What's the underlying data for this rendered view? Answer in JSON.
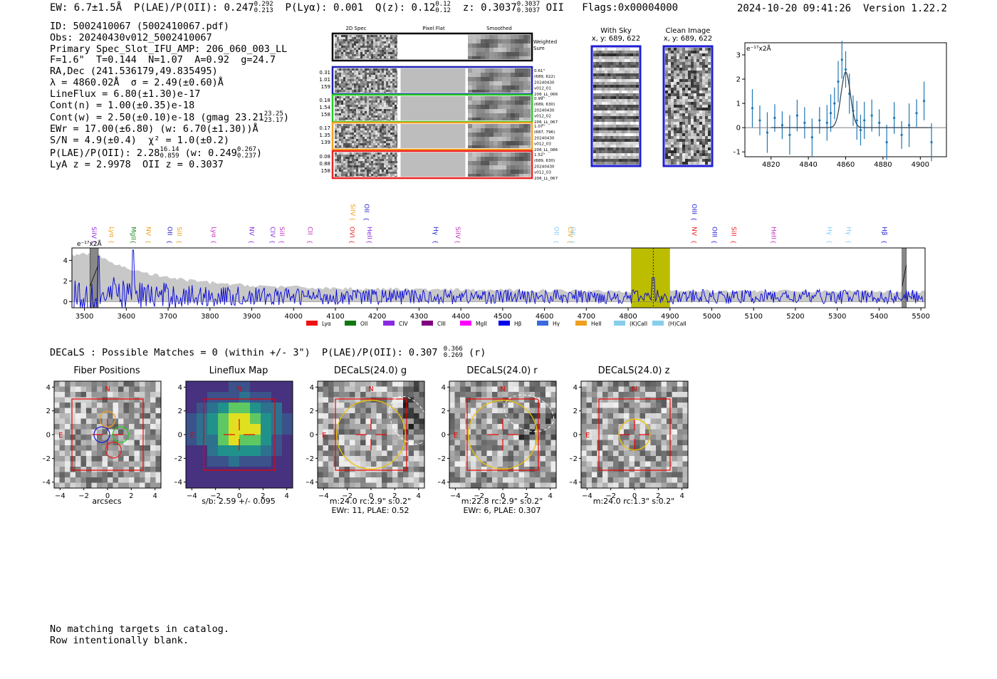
{
  "header": {
    "ew": "EW: 6.7±1.5Å",
    "plae": "P(LAE)/P(OII): 0.247",
    "plae_hi": "0.292",
    "plae_lo": "0.213",
    "plya": "P(Lyα): 0.001",
    "qz": "Q(z): 0.12",
    "qz_hi": "0.12",
    "qz_lo": "0.12",
    "z": "z: 0.3037",
    "z_hi": "0.3037",
    "z_lo": "0.3037",
    "z_line": "OII",
    "flags": "Flags:0x00004000",
    "timestamp": "2024-10-20 09:41:26",
    "version": "Version 1.22.2"
  },
  "info": {
    "l1": "ID: 5002410067 (5002410067.pdf)",
    "l2": "Obs: 20240430v012_5002410067",
    "l3": "Primary Spec_Slot_IFU_AMP: 206_060_003_LL",
    "l4": "F=1.6\"  T=0.144  N=1.07  A=0.92  g=24.7",
    "l5": "RA,Dec (241.536179,49.835495)",
    "l6": "λ = 4860.02Å  σ = 2.49(±0.60)Å",
    "l7": "LineFlux = 6.80(±1.30)e-17",
    "l8": "Cont(n) = 1.00(±0.35)e-18",
    "l9": "Cont(w) = 2.50(±0.10)e-18 (gmag 23.21",
    "l9_hi": "23.25",
    "l9_lo": "23.17",
    "l10": "EWr = 17.00(±6.80) (w: 6.70(±1.30))Å",
    "l11": "S/N = 4.9(±0.4)  χ² = 1.0(±0.2)",
    "l12a": "P(LAE)/P(OII): 2.28",
    "l12_hi": "16.14",
    "l12_lo": "0.859",
    "l12b": "(w: 0.249",
    "l12b_hi": "0.267",
    "l12b_lo": "0.237",
    "l13": "LyA z = 2.9978  OII z = 0.3037"
  },
  "cutouts": {
    "col_titles": [
      "2D Spec",
      "Pixel Flat",
      "Smoothed"
    ],
    "weighted_sum": [
      "Weighted",
      "Sum"
    ],
    "rows": [
      {
        "left": [
          "0.31",
          "1.01",
          "159"
        ],
        "right": [
          "0.61\"",
          "(689, 622)",
          "20240430",
          "v012_01",
          "206_LL_066"
        ],
        "color": "#1f1fb4"
      },
      {
        "left": [
          "0.18",
          "1.54",
          "158"
        ],
        "right": [
          "0.99\"",
          "(689, 630)",
          "20240430",
          "v012_02",
          "206_LL_067"
        ],
        "color": "#22cc22"
      },
      {
        "left": [
          "0.17",
          "1.35",
          "139"
        ],
        "right": [
          "1.07\"",
          "(687, 796)",
          "20240430",
          "v012_03",
          "206_LL_086"
        ],
        "color": "#f0a020"
      },
      {
        "left": [
          "0.08",
          "0.88",
          "158"
        ],
        "right": [
          "1.52\"",
          "(689, 630)",
          "20240430",
          "v012_03",
          "206_LL_067"
        ],
        "color": "#ee2222"
      }
    ],
    "with_sky_title": "With Sky",
    "with_sky_xy": "x, y: 689, 622",
    "clean_title": "Clean Image",
    "clean_xy": "x, y: 689, 622"
  },
  "zoom_chart": {
    "ylabel": "e⁻¹⁷x2Å"
  },
  "spectrum": {
    "ylabel": "e⁻¹⁷x2Å",
    "line_markers": [
      {
        "label": "SiIV",
        "x": 3523,
        "color": "#8a2be2",
        "row": 1
      },
      {
        "label": "Lyα",
        "x": 3565,
        "color": "#f0a020",
        "row": 1
      },
      {
        "label": "MgII",
        "x": 3617,
        "color": "#228b22",
        "row": 1
      },
      {
        "label": "NV",
        "x": 3653,
        "color": "#f0a020",
        "row": 1
      },
      {
        "label": "OII",
        "x": 3704,
        "color": "#1f1fd4",
        "row": 1
      },
      {
        "label": "SiII",
        "x": 3727,
        "color": "#f0a020",
        "row": 1
      },
      {
        "label": "Lyα",
        "x": 3810,
        "color": "#c030c0",
        "row": 1
      },
      {
        "label": "NV",
        "x": 3900,
        "color": "#8a2be2",
        "row": 1
      },
      {
        "label": "CIV",
        "x": 3950,
        "color": "#8a2be2",
        "row": 1
      },
      {
        "label": "SiII",
        "x": 3972,
        "color": "#c030c0",
        "row": 1
      },
      {
        "label": "CII",
        "x": 4040,
        "color": "#c030c0",
        "row": 1
      },
      {
        "label": "SiIV",
        "x": 4142,
        "color": "#f0a020",
        "row": 0
      },
      {
        "label": "OII",
        "x": 4175,
        "color": "#1f1fd4",
        "row": 0
      },
      {
        "label": "OVI",
        "x": 4140,
        "color": "#ee2222",
        "row": 1
      },
      {
        "label": "HeII",
        "x": 4182,
        "color": "#8a2be2",
        "row": 1
      },
      {
        "label": "Hγ",
        "x": 4340,
        "color": "#1f1fd4",
        "row": 1
      },
      {
        "label": "SiIV",
        "x": 4393,
        "color": "#c030c0",
        "row": 1
      },
      {
        "label": "OII",
        "x": 4629,
        "color": "#87cefa",
        "row": 1
      },
      {
        "label": "CIV",
        "x": 4662,
        "color": "#f0a020",
        "row": 1
      },
      {
        "label": "OII",
        "x": 4668,
        "color": "#87cefa",
        "row": 1
      },
      {
        "label": "OIII",
        "x": 4958,
        "color": "#1f1fd4",
        "row": 0
      },
      {
        "label": "NV",
        "x": 4958,
        "color": "#ee2222",
        "row": 1
      },
      {
        "label": "OIII",
        "x": 5007,
        "color": "#1f1fd4",
        "row": 1
      },
      {
        "label": "SiII",
        "x": 5053,
        "color": "#ee2222",
        "row": 1
      },
      {
        "label": "HeII",
        "x": 5148,
        "color": "#c030c0",
        "row": 1
      },
      {
        "label": "Hγ",
        "x": 5282,
        "color": "#87cefa",
        "row": 1
      },
      {
        "label": "Hγ",
        "x": 5328,
        "color": "#87cefa",
        "row": 1
      },
      {
        "label": "Hβ",
        "x": 5413,
        "color": "#1f1fd4",
        "row": 1
      }
    ],
    "legend": [
      {
        "label": "Lyα",
        "color": "#ee1111"
      },
      {
        "label": "OII",
        "color": "#117711"
      },
      {
        "label": "CIV",
        "color": "#8a2be2"
      },
      {
        "label": "CIII",
        "color": "#800080"
      },
      {
        "label": "MgII",
        "color": "#ff00ff"
      },
      {
        "label": "Hβ",
        "color": "#0000ee"
      },
      {
        "label": "Hγ",
        "color": "#3a6adf"
      },
      {
        "label": "HeII",
        "color": "#f0a020"
      },
      {
        "label": "(K)CaII",
        "color": "#87ceeb"
      },
      {
        "label": "(H)CaII",
        "color": "#87ceeb"
      }
    ]
  },
  "decals": {
    "summary": "DECaLS : Possible Matches = 0 (within +/- 3\")  P(LAE)/P(OII): 0.307",
    "summary_hi": "0.366",
    "summary_lo": "0.269",
    "summary_band": "(r)",
    "panels": [
      {
        "title": "Fiber Positions",
        "caption1": "arcsecs",
        "caption2": "",
        "n": "N",
        "e": "E"
      },
      {
        "title": "Lineflux Map",
        "caption1": "s/b: 2.59 +/- 0.095",
        "caption2": "",
        "n": "N",
        "e": "E"
      },
      {
        "title": "DECaLS(24.0) g",
        "caption1": "m:24.0 rc:2.9\"  s:0.2\"",
        "caption2": "EWr: 11, PLAE: 0.52",
        "n": "N",
        "e": "E"
      },
      {
        "title": "DECaLS(24.0) r",
        "caption1": "m:22.8 rc:2.9\"  s:0.2\"",
        "caption2": "EWr: 6, PLAE: 0.307",
        "n": "N",
        "e": "E"
      },
      {
        "title": "DECaLS(24.0) z",
        "caption1": "m:24.0 rc:1.3\"  s:0.2\"",
        "caption2": "",
        "n": "N",
        "e": "E"
      }
    ]
  },
  "footer": {
    "line1": "No matching targets in catalog.",
    "line2": "Row intentionally blank."
  },
  "chart_data": [
    {
      "type": "line",
      "title": "",
      "ylabel": "e⁻¹⁷x2Å",
      "xlabel": "",
      "xlim": [
        4806,
        4914
      ],
      "ylim": [
        -1.2,
        3.5
      ],
      "x_ticks": [
        4820,
        4840,
        4860,
        4880,
        4900
      ],
      "y_ticks": [
        -1,
        0,
        1,
        2,
        3
      ],
      "series": [
        {
          "name": "data",
          "x": [
            4810,
            4814,
            4818,
            4822,
            4826,
            4830,
            4834,
            4838,
            4842,
            4846,
            4850,
            4852,
            4854,
            4856,
            4858,
            4860,
            4862,
            4864,
            4866,
            4868,
            4870,
            4874,
            4878,
            4882,
            4886,
            4890,
            4894,
            4898,
            4902,
            4906
          ],
          "y": [
            0.8,
            0.3,
            -0.2,
            0.4,
            0.1,
            -0.3,
            0.5,
            0.2,
            -0.4,
            0.3,
            0.2,
            0.6,
            1.0,
            1.9,
            2.8,
            2.4,
            1.4,
            0.7,
            0.3,
            -0.1,
            0.3,
            0.5,
            0.2,
            -0.6,
            0.4,
            -0.3,
            0.1,
            0.6,
            1.1,
            -0.6
          ]
        },
        {
          "name": "fit",
          "type": "gaussian",
          "center": 4860.02,
          "sigma": 2.49,
          "amplitude": 2.3
        }
      ]
    },
    {
      "type": "line",
      "title": "",
      "ylabel": "e⁻¹⁷x2Å",
      "xlim": [
        3470,
        5510
      ],
      "ylim": [
        -0.6,
        5.2
      ],
      "x_ticks": [
        3500,
        3600,
        3700,
        3800,
        3900,
        4000,
        4100,
        4200,
        4300,
        4400,
        4500,
        4600,
        4700,
        4800,
        4900,
        5000,
        5100,
        5200,
        5300,
        5400,
        5500
      ],
      "y_ticks": [
        0,
        2,
        4
      ],
      "highlight_band": [
        4807,
        4900
      ],
      "line_marker": 4860,
      "masked_regions": [
        [
          3513,
          3533
        ],
        [
          5455,
          5465
        ]
      ]
    }
  ]
}
